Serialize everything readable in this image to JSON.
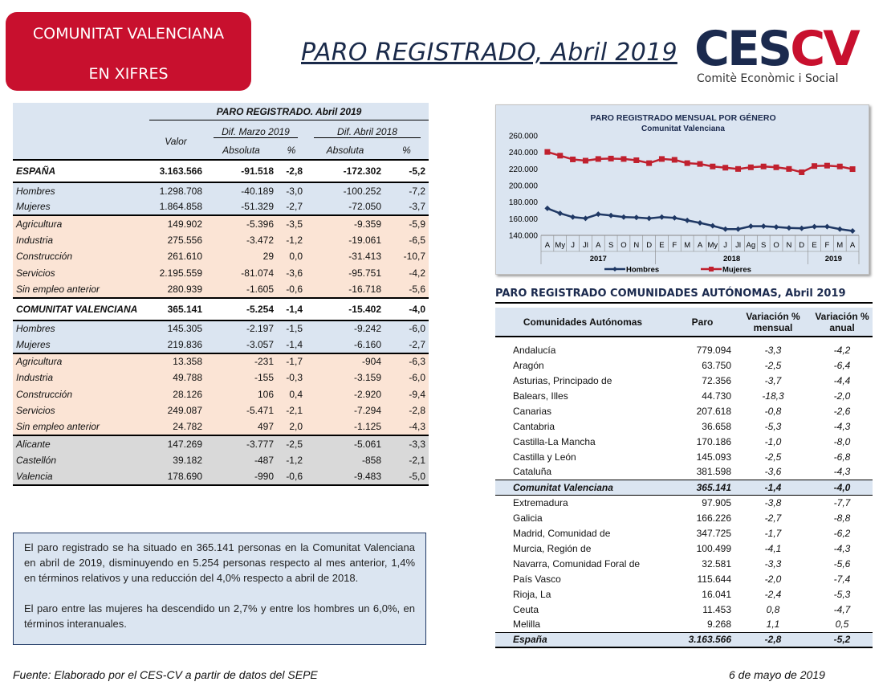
{
  "badge": {
    "line1": "COMUNITAT VALENCIANA",
    "line2": "EN XIFRES"
  },
  "title": "PARO REGISTRADO, Abril 2019",
  "logo": {
    "text_main": "CES",
    "text_accent": "CV",
    "subtitle": "Comitè Econòmic i Social"
  },
  "left_table": {
    "super_header": "PARO REGISTRADO. Abril 2019",
    "col_valor": "Valor",
    "col_dif_marzo": "Dif. Marzo 2019",
    "col_dif_abril": "Dif. Abril 2018",
    "col_absoluta": "Absoluta",
    "col_pct": "%",
    "rows": [
      {
        "label": "ESPAÑA",
        "valor": "3.163.566",
        "m_abs": "-91.518",
        "m_pct": "-2,8",
        "a_abs": "-172.302",
        "a_pct": "-5,2"
      },
      {
        "label": "Hombres",
        "valor": "1.298.708",
        "m_abs": "-40.189",
        "m_pct": "-3,0",
        "a_abs": "-100.252",
        "a_pct": "-7,2"
      },
      {
        "label": "Mujeres",
        "valor": "1.864.858",
        "m_abs": "-51.329",
        "m_pct": "-2,7",
        "a_abs": "-72.050",
        "a_pct": "-3,7"
      },
      {
        "label": "Agricultura",
        "valor": "149.902",
        "m_abs": "-5.396",
        "m_pct": "-3,5",
        "a_abs": "-9.359",
        "a_pct": "-5,9"
      },
      {
        "label": "Industria",
        "valor": "275.556",
        "m_abs": "-3.472",
        "m_pct": "-1,2",
        "a_abs": "-19.061",
        "a_pct": "-6,5"
      },
      {
        "label": "Construcción",
        "valor": "261.610",
        "m_abs": "29",
        "m_pct": "0,0",
        "a_abs": "-31.413",
        "a_pct": "-10,7"
      },
      {
        "label": "Servicios",
        "valor": "2.195.559",
        "m_abs": "-81.074",
        "m_pct": "-3,6",
        "a_abs": "-95.751",
        "a_pct": "-4,2"
      },
      {
        "label": "Sin empleo anterior",
        "valor": "280.939",
        "m_abs": "-1.605",
        "m_pct": "-0,6",
        "a_abs": "-16.718",
        "a_pct": "-5,6"
      },
      {
        "label": "COMUNITAT VALENCIANA",
        "valor": "365.141",
        "m_abs": "-5.254",
        "m_pct": "-1,4",
        "a_abs": "-15.402",
        "a_pct": "-4,0"
      },
      {
        "label": "Hombres",
        "valor": "145.305",
        "m_abs": "-2.197",
        "m_pct": "-1,5",
        "a_abs": "-9.242",
        "a_pct": "-6,0"
      },
      {
        "label": "Mujeres",
        "valor": "219.836",
        "m_abs": "-3.057",
        "m_pct": "-1,4",
        "a_abs": "-6.160",
        "a_pct": "-2,7"
      },
      {
        "label": "Agricultura",
        "valor": "13.358",
        "m_abs": "-231",
        "m_pct": "-1,7",
        "a_abs": "-904",
        "a_pct": "-6,3"
      },
      {
        "label": "Industria",
        "valor": "49.788",
        "m_abs": "-155",
        "m_pct": "-0,3",
        "a_abs": "-3.159",
        "a_pct": "-6,0"
      },
      {
        "label": "Construcción",
        "valor": "28.126",
        "m_abs": "106",
        "m_pct": "0,4",
        "a_abs": "-2.920",
        "a_pct": "-9,4"
      },
      {
        "label": "Servicios",
        "valor": "249.087",
        "m_abs": "-5.471",
        "m_pct": "-2,1",
        "a_abs": "-7.294",
        "a_pct": "-2,8"
      },
      {
        "label": "Sin empleo anterior",
        "valor": "24.782",
        "m_abs": "497",
        "m_pct": "2,0",
        "a_abs": "-1.125",
        "a_pct": "-4,3"
      },
      {
        "label": "Alicante",
        "valor": "147.269",
        "m_abs": "-3.777",
        "m_pct": "-2,5",
        "a_abs": "-5.061",
        "a_pct": "-3,3"
      },
      {
        "label": "Castellón",
        "valor": "39.182",
        "m_abs": "-487",
        "m_pct": "-1,2",
        "a_abs": "-858",
        "a_pct": "-2,1"
      },
      {
        "label": "Valencia",
        "valor": "178.690",
        "m_abs": "-990",
        "m_pct": "-0,6",
        "a_abs": "-9.483",
        "a_pct": "-5,0"
      }
    ]
  },
  "text": {
    "p1": "El paro registrado se ha situado en 365.141 personas en la Comunitat Valenciana en abril de 2019, disminuyendo en 5.254 personas respecto al mes anterior, 1,4% en términos relativos y una reducción del 4,0% respecto a abril de 2018.",
    "p2": "El paro entre las mujeres ha descendido un 2,7% y entre los hombres un 6,0%, en términos interanuales."
  },
  "footer": {
    "source": "Fuente: Elaborado por el CES-CV a partir de datos del SEPE",
    "date": "6 de mayo de 2019"
  },
  "chart_data": {
    "type": "line",
    "title": "PARO REGISTRADO MENSUAL POR GÉNERO",
    "subtitle": "Comunitat Valenciana",
    "x": [
      "A",
      "My",
      "J",
      "Jl",
      "A",
      "S",
      "O",
      "N",
      "D",
      "E",
      "F",
      "M",
      "A",
      "My",
      "J",
      "Jl",
      "Ag",
      "S",
      "O",
      "N",
      "D",
      "E",
      "F",
      "M",
      "A"
    ],
    "years": [
      {
        "label": "2017",
        "from": 0,
        "to": 8
      },
      {
        "label": "2018",
        "from": 9,
        "to": 20
      },
      {
        "label": "2019",
        "from": 21,
        "to": 24
      }
    ],
    "yticks": [
      "260.000",
      "240.000",
      "220.000",
      "200.000",
      "180.000",
      "160.000",
      "140.000"
    ],
    "ylim": [
      140000,
      260000
    ],
    "series": [
      {
        "name": "Hombres",
        "color": "#1f3864",
        "values": [
          172500,
          166500,
          162000,
          160500,
          165500,
          164000,
          162000,
          161500,
          160500,
          162000,
          161000,
          158000,
          155000,
          151500,
          147500,
          147500,
          151000,
          151000,
          150000,
          149000,
          148500,
          150500,
          150500,
          147500,
          145300
        ]
      },
      {
        "name": "Mujeres",
        "color": "#c0202e",
        "values": [
          240500,
          236000,
          231500,
          230000,
          232000,
          232500,
          232000,
          230500,
          227000,
          232000,
          231000,
          227000,
          226000,
          223000,
          221500,
          220000,
          222000,
          223000,
          222000,
          220000,
          216000,
          223500,
          224000,
          223000,
          219800
        ]
      }
    ],
    "legend": "bottom"
  },
  "rt": {
    "title": "PARO REGISTRADO COMUNIDADES AUTÓNOMAS, Abril 2019",
    "h_com": "Comunidades Autónomas",
    "h_paro": "Paro",
    "h_vm1": "Variación %",
    "h_vm2": "mensual",
    "h_va1": "Variación %",
    "h_va2": "anual",
    "rows": [
      {
        "name": "Andalucía",
        "paro": "779.094",
        "vm": "-3,3",
        "va": "-4,2"
      },
      {
        "name": "Aragón",
        "paro": "63.750",
        "vm": "-2,5",
        "va": "-6,4"
      },
      {
        "name": "Asturias, Principado de",
        "paro": "72.356",
        "vm": "-3,7",
        "va": "-4,4"
      },
      {
        "name": "Balears, Illes",
        "paro": "44.730",
        "vm": "-18,3",
        "va": "-2,0"
      },
      {
        "name": "Canarias",
        "paro": "207.618",
        "vm": "-0,8",
        "va": "-2,6"
      },
      {
        "name": "Cantabria",
        "paro": "36.658",
        "vm": "-5,3",
        "va": "-4,3"
      },
      {
        "name": "Castilla-La Mancha",
        "paro": "170.186",
        "vm": "-1,0",
        "va": "-8,0"
      },
      {
        "name": "Castilla y León",
        "paro": "145.093",
        "vm": "-2,5",
        "va": "-6,8"
      },
      {
        "name": "Cataluña",
        "paro": "381.598",
        "vm": "-3,6",
        "va": "-4,3"
      },
      {
        "name": "Comunitat Valenciana",
        "paro": "365.141",
        "vm": "-1,4",
        "va": "-4,0"
      },
      {
        "name": "Extremadura",
        "paro": "97.905",
        "vm": "-3,8",
        "va": "-7,7"
      },
      {
        "name": "Galicia",
        "paro": "166.226",
        "vm": "-2,7",
        "va": "-8,8"
      },
      {
        "name": "Madrid, Comunidad de",
        "paro": "347.725",
        "vm": "-1,7",
        "va": "-6,2"
      },
      {
        "name": "Murcia, Región de",
        "paro": "100.499",
        "vm": "-4,1",
        "va": "-4,3"
      },
      {
        "name": "Navarra, Comunidad Foral de",
        "paro": "32.581",
        "vm": "-3,3",
        "va": "-5,6"
      },
      {
        "name": "País Vasco",
        "paro": "115.644",
        "vm": "-2,0",
        "va": "-7,4"
      },
      {
        "name": "Rioja, La",
        "paro": "16.041",
        "vm": "-2,4",
        "va": "-5,3"
      },
      {
        "name": "Ceuta",
        "paro": "11.453",
        "vm": "0,8",
        "va": "-4,7"
      },
      {
        "name": "Melilla",
        "paro": "9.268",
        "vm": "1,1",
        "va": "0,5"
      },
      {
        "name": "España",
        "paro": "3.163.566",
        "vm": "-2,8",
        "va": "-5,2"
      }
    ]
  }
}
